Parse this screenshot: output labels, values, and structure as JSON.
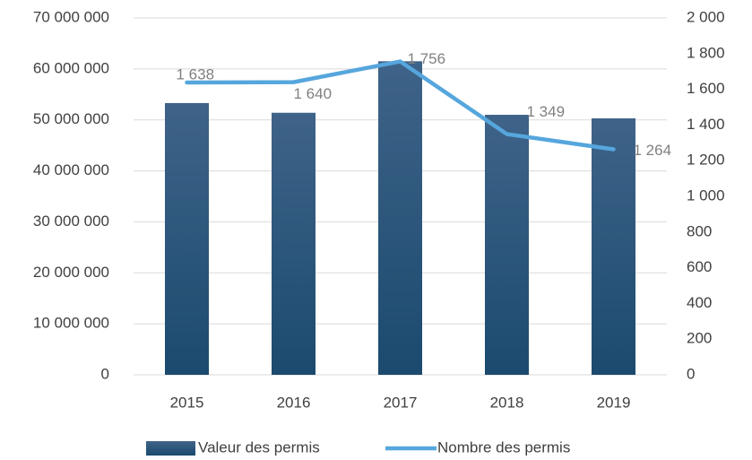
{
  "chart_data": {
    "type": "bar",
    "categories": [
      "2015",
      "2016",
      "2017",
      "2018",
      "2019"
    ],
    "series": [
      {
        "name": "Valeur des permis",
        "type": "bar",
        "color": "#1b4a6e",
        "values": [
          53300000,
          51400000,
          61500000,
          51000000,
          50300000
        ]
      },
      {
        "name": "Nombre des permis",
        "type": "line",
        "axis": "y2",
        "color": "#56a6dd",
        "values": [
          1638,
          1640,
          1756,
          1349,
          1264
        ],
        "value_labels": [
          "1 638",
          "1 640",
          "1 756",
          "1 349",
          "1 264"
        ]
      }
    ],
    "ylim": [
      0,
      70000000
    ],
    "yticks": [
      0,
      {
        "value": 10000000,
        "label": "10 000 000"
      },
      {
        "value": 20000000,
        "label": "20 000 000"
      },
      {
        "value": 30000000,
        "label": "30 000 000"
      },
      {
        "value": 40000000,
        "label": "40 000 000"
      },
      {
        "value": 50000000,
        "label": "50 000 000"
      },
      {
        "value": 60000000,
        "label": "60 000 000"
      },
      {
        "value": 70000000,
        "label": "70 000 000"
      }
    ],
    "y2lim": [
      0,
      2000
    ],
    "y2ticks": [
      0,
      200,
      400,
      600,
      800,
      {
        "value": 1000,
        "label": "1 000"
      },
      {
        "value": 1200,
        "label": "1 200"
      },
      {
        "value": 1400,
        "label": "1 400"
      },
      {
        "value": 1600,
        "label": "1 600"
      },
      {
        "value": 1800,
        "label": "1 800"
      },
      {
        "value": 2000,
        "label": "2 000"
      }
    ],
    "grid": true,
    "legend": "bottom"
  }
}
